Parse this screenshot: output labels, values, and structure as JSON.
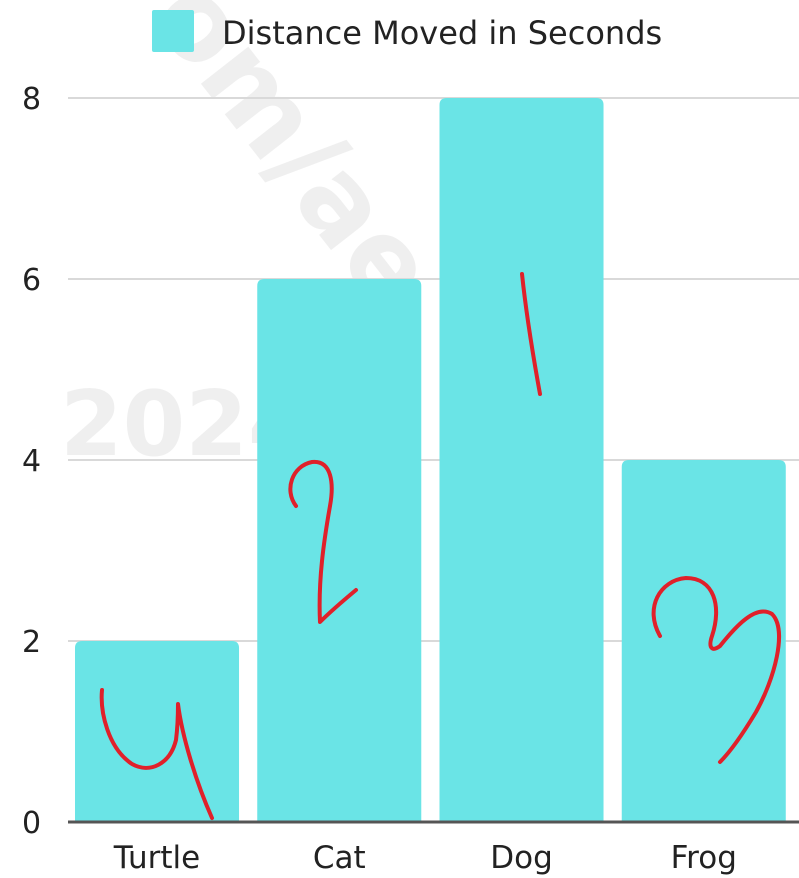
{
  "chart_data": {
    "type": "bar",
    "categories": [
      "Turtle",
      "Cat",
      "Dog",
      "Frog"
    ],
    "series": [
      {
        "name": "Distance Moved in Seconds",
        "values": [
          2,
          6,
          8,
          4
        ]
      }
    ],
    "ylim": [
      0,
      8
    ],
    "yticks": [
      "0",
      "2",
      "4",
      "6",
      "8"
    ],
    "grid": true,
    "legend_position": "top",
    "colors": {
      "bar": "#6ae4e6",
      "grid": "#d9d9d9",
      "axis": "#555555",
      "annotation": "#e0202a"
    },
    "annotations": [
      "4",
      "2",
      "1",
      "3"
    ]
  },
  "watermark": [
    "om/ae",
    "2024"
  ]
}
